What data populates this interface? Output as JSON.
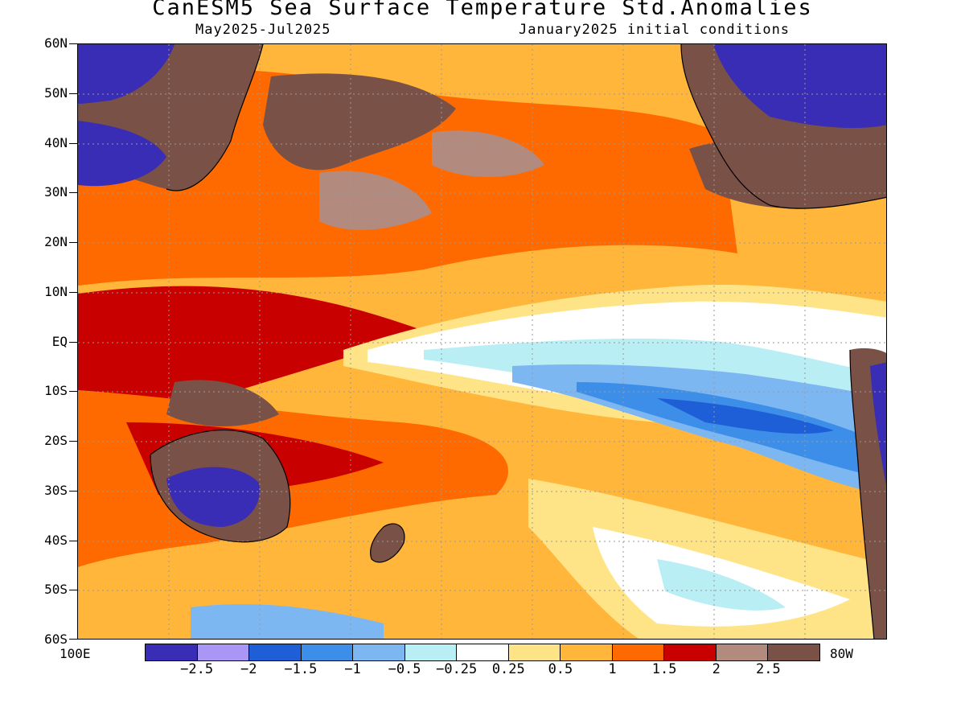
{
  "title": "CanESM5 Sea Surface Temperature Std.Anomalies",
  "subtitle_left": "May2025-Jul2025",
  "subtitle_right": "January2025 initial conditions",
  "lat_labels": [
    "60N",
    "50N",
    "40N",
    "30N",
    "20N",
    "10N",
    "EQ",
    "10S",
    "20S",
    "30S",
    "40S",
    "50S",
    "60S"
  ],
  "lon_left_label": "100E",
  "lon_right_label": "80W",
  "colorbar": {
    "colors": [
      "#3a2db5",
      "#a996f5",
      "#1e5fd8",
      "#3d8ee8",
      "#7db7f2",
      "#b9eef5",
      "#ffffff",
      "#ffe487",
      "#ffb63a",
      "#ff6a00",
      "#c80000",
      "#b38a7e",
      "#7a5146"
    ],
    "labels": [
      "-2.5",
      "-2",
      "-1.5",
      "-1",
      "-0.5",
      "-0.25",
      "0.25",
      "0.5",
      "1",
      "1.5",
      "2",
      "2.5"
    ]
  },
  "land_color": "#7a5146"
}
